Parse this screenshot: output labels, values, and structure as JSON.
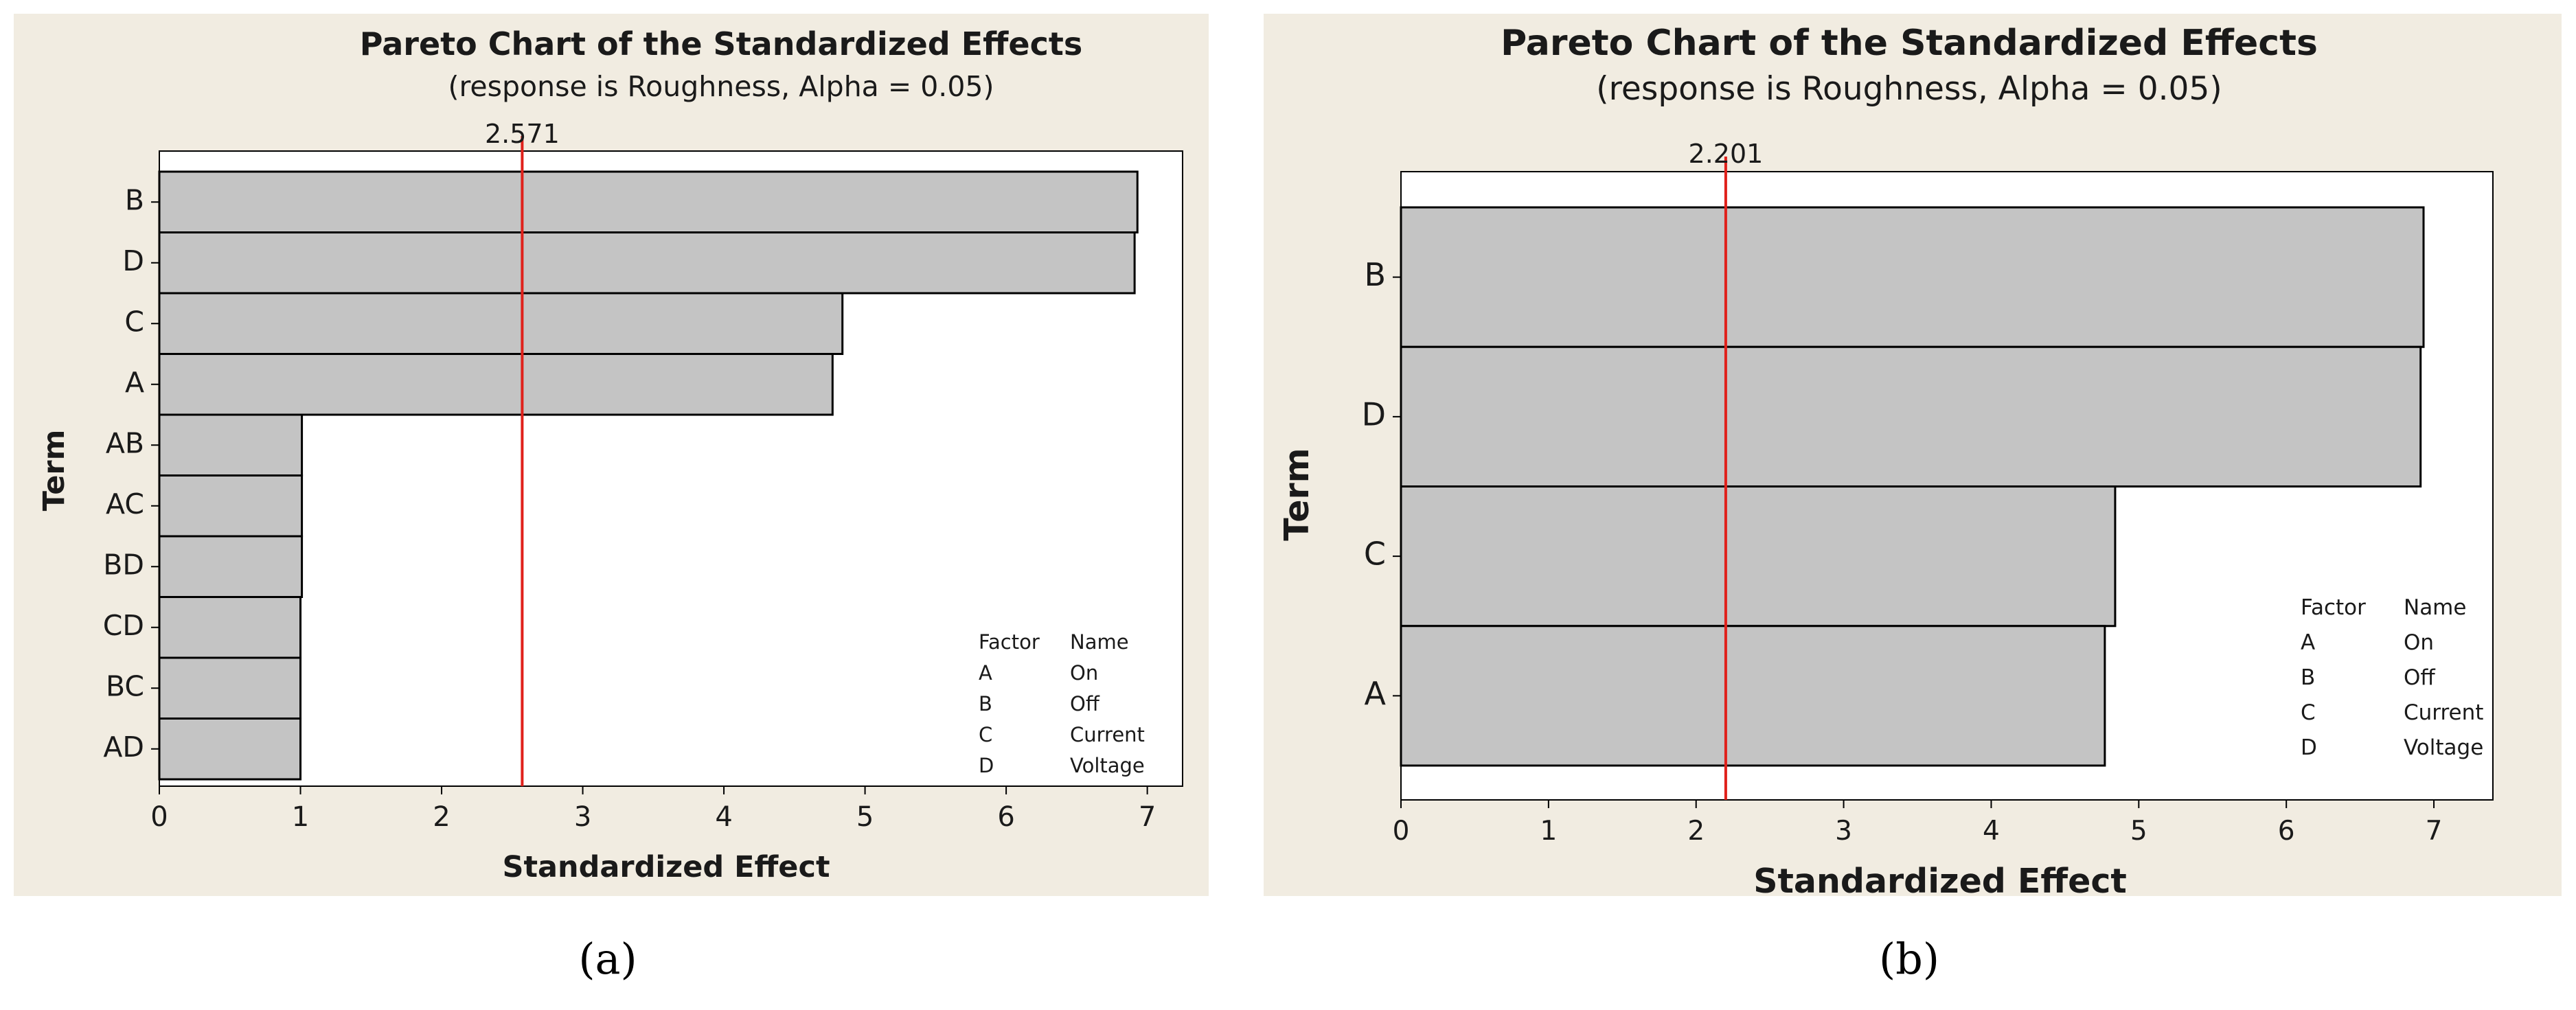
{
  "colors": {
    "panel_bg": "#f1ece1",
    "plot_bg": "#ffffff",
    "bar_fill": "#c4c4c4",
    "bar_stroke": "#000000",
    "ref_line": "#e0211b",
    "text": "#1a1a1a"
  },
  "chart_data": [
    {
      "type": "bar",
      "orientation": "horizontal",
      "panel_label": "(a)",
      "title": "Pareto Chart of the Standardized Effects",
      "subtitle": "(response is Roughness, Alpha = 0.05)",
      "xlabel": "Standardized Effect",
      "ylabel": "Term",
      "xlim": [
        0,
        7.25
      ],
      "xticks": [
        "0",
        "1",
        "2",
        "3",
        "4",
        "5",
        "6",
        "7"
      ],
      "categories": [
        "B",
        "D",
        "C",
        "A",
        "AB",
        "AC",
        "BD",
        "CD",
        "BC",
        "AD"
      ],
      "values": [
        6.93,
        6.91,
        4.84,
        4.77,
        1.01,
        1.01,
        1.01,
        1.0,
        1.0,
        1.0
      ],
      "reference_line": {
        "value": 2.571,
        "label": "2.571"
      },
      "legend": {
        "header": [
          "Factor",
          "Name"
        ],
        "rows": [
          [
            "A",
            "On"
          ],
          [
            "B",
            "Off"
          ],
          [
            "C",
            "Current"
          ],
          [
            "D",
            "Voltage"
          ]
        ]
      }
    },
    {
      "type": "bar",
      "orientation": "horizontal",
      "panel_label": "(b)",
      "title": "Pareto Chart of the Standardized Effects",
      "subtitle": "(response is Roughness, Alpha = 0.05)",
      "xlabel": "Standardized Effect",
      "ylabel": "Term",
      "xlim": [
        0,
        7.4
      ],
      "xticks": [
        "0",
        "1",
        "2",
        "3",
        "4",
        "5",
        "6",
        "7"
      ],
      "categories": [
        "B",
        "D",
        "C",
        "A"
      ],
      "values": [
        6.93,
        6.91,
        4.84,
        4.77
      ],
      "reference_line": {
        "value": 2.201,
        "label": "2.201"
      },
      "legend": {
        "header": [
          "Factor",
          "Name"
        ],
        "rows": [
          [
            "A",
            "On"
          ],
          [
            "B",
            "Off"
          ],
          [
            "C",
            "Current"
          ],
          [
            "D",
            "Voltage"
          ]
        ]
      }
    }
  ]
}
